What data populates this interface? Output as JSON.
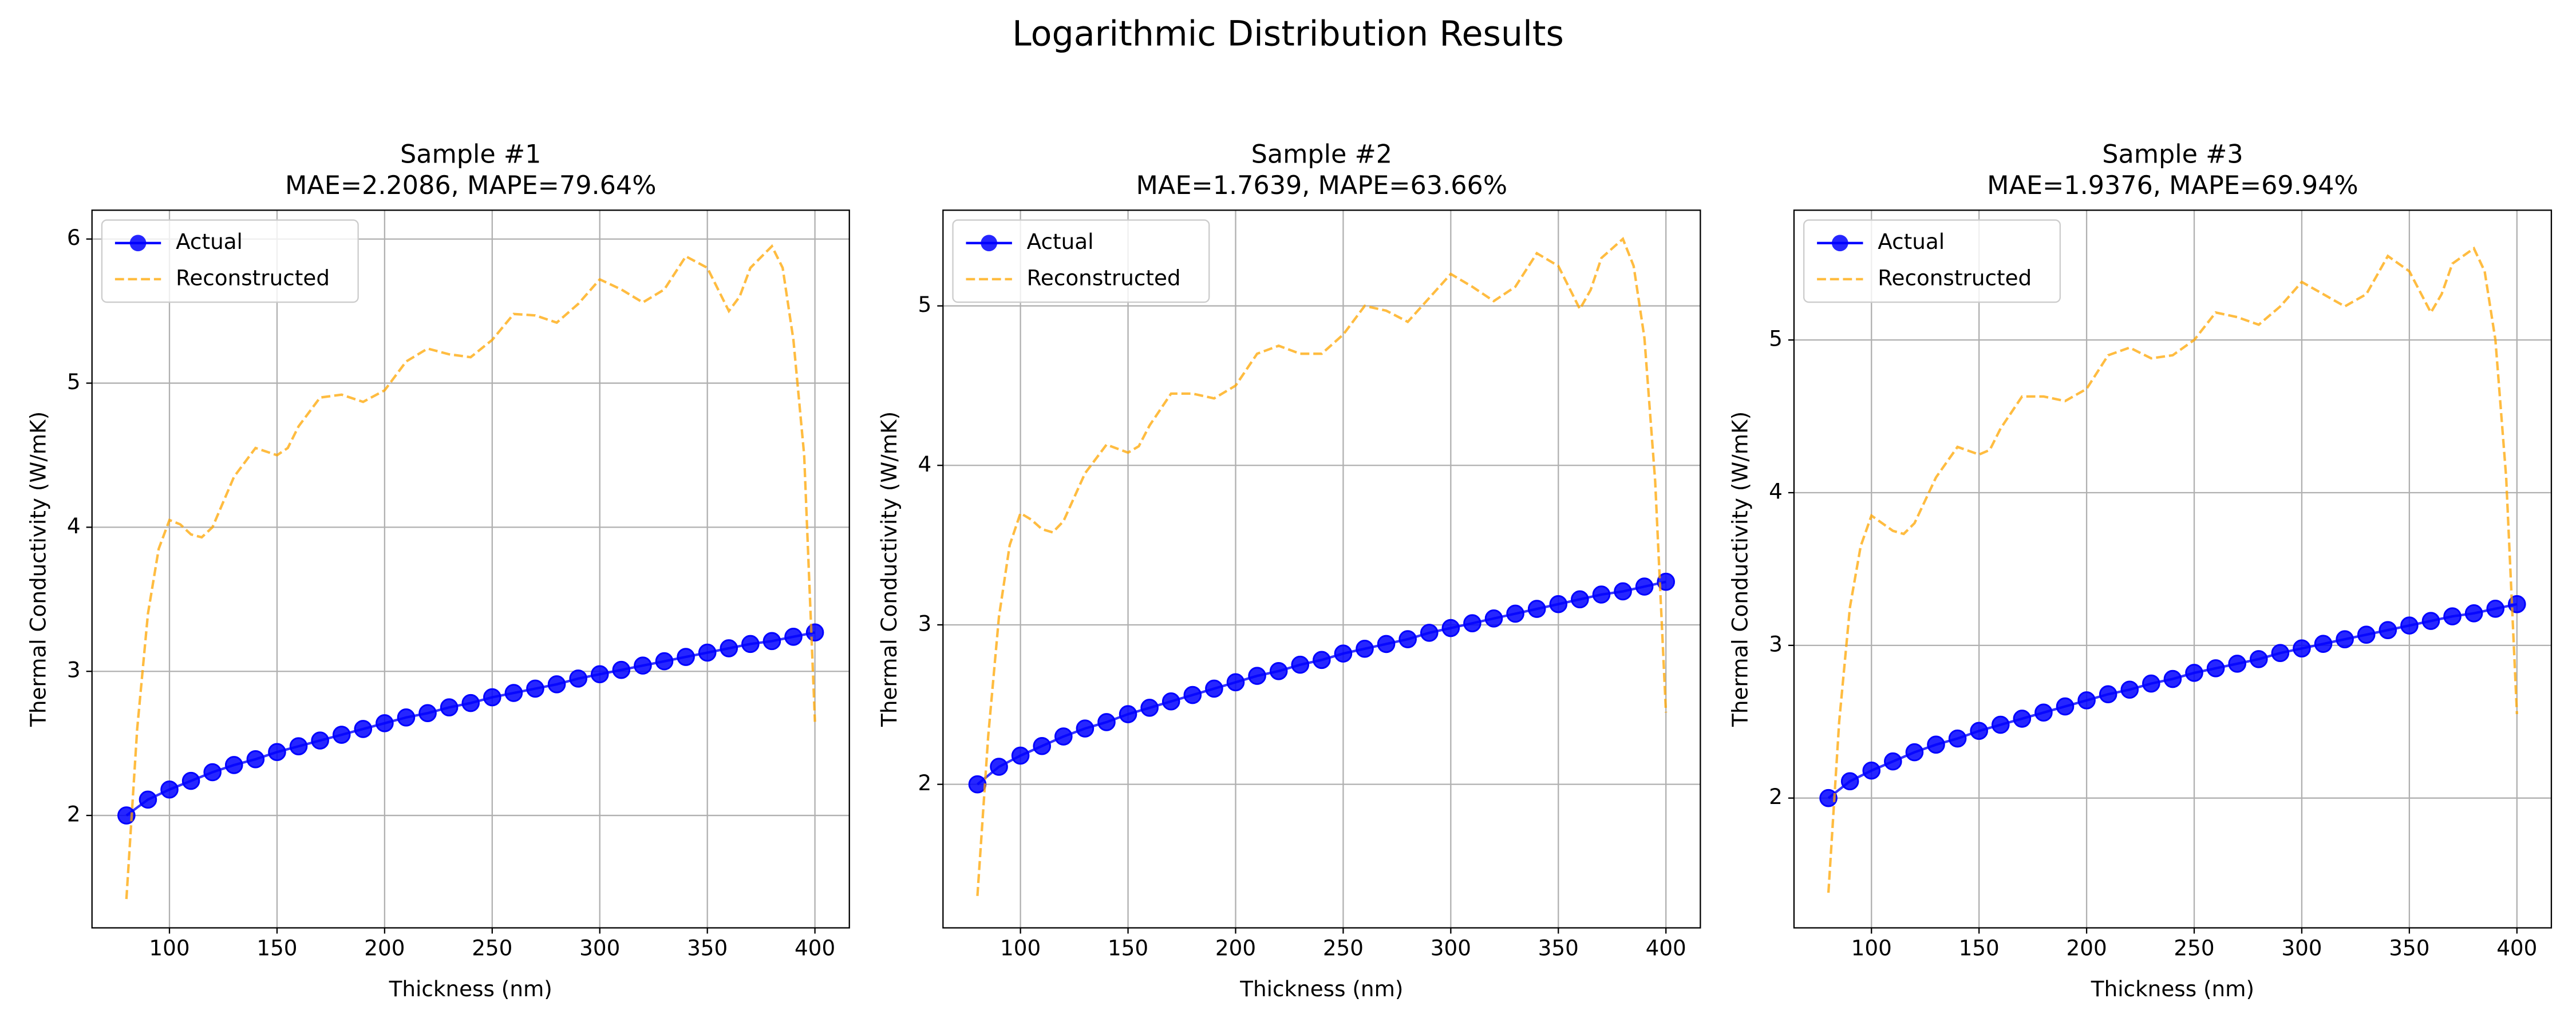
{
  "suptitle": "Logarithmic Distribution Results",
  "chart_data": [
    {
      "type": "line",
      "title": "Sample #1",
      "subtitle": "MAE=2.2086, MAPE=79.64%",
      "xlabel": "Thickness (nm)",
      "ylabel": "Thermal Conductivity (W/mK)",
      "xlim": [
        64,
        416
      ],
      "xticks": [
        100,
        150,
        200,
        250,
        300,
        350,
        400
      ],
      "ylim": [
        1.22,
        6.2
      ],
      "yticks": [
        2,
        3,
        4,
        5,
        6
      ],
      "grid": true,
      "legend": "upper left",
      "series": [
        {
          "name": "Actual",
          "color": "#0000ff",
          "marker": "o",
          "linestyle": "solid",
          "x": [
            80,
            90,
            100,
            110,
            120,
            130,
            140,
            150,
            160,
            170,
            180,
            190,
            200,
            210,
            220,
            230,
            240,
            250,
            260,
            270,
            280,
            290,
            300,
            310,
            320,
            330,
            340,
            350,
            360,
            370,
            380,
            390,
            400
          ],
          "values": [
            2.0,
            2.11,
            2.18,
            2.24,
            2.3,
            2.35,
            2.39,
            2.44,
            2.48,
            2.52,
            2.56,
            2.6,
            2.64,
            2.68,
            2.71,
            2.75,
            2.78,
            2.82,
            2.85,
            2.88,
            2.91,
            2.95,
            2.98,
            3.01,
            3.04,
            3.07,
            3.1,
            3.13,
            3.16,
            3.19,
            3.21,
            3.24,
            3.27
          ]
        },
        {
          "name": "Reconstructed",
          "color": "#ffa500",
          "marker": "none",
          "linestyle": "dashed",
          "x": [
            80,
            85,
            90,
            95,
            100,
            105,
            110,
            115,
            120,
            130,
            140,
            150,
            155,
            160,
            170,
            180,
            190,
            200,
            210,
            220,
            230,
            240,
            250,
            260,
            270,
            280,
            290,
            300,
            310,
            320,
            330,
            340,
            350,
            360,
            365,
            370,
            380,
            385,
            390,
            395,
            400
          ],
          "values": [
            1.42,
            2.6,
            3.4,
            3.85,
            4.05,
            4.02,
            3.95,
            3.93,
            4.0,
            4.35,
            4.55,
            4.5,
            4.55,
            4.7,
            4.9,
            4.92,
            4.87,
            4.95,
            5.15,
            5.24,
            5.2,
            5.18,
            5.3,
            5.48,
            5.47,
            5.42,
            5.55,
            5.72,
            5.65,
            5.56,
            5.65,
            5.88,
            5.8,
            5.5,
            5.6,
            5.8,
            5.95,
            5.8,
            5.3,
            4.5,
            2.65
          ]
        }
      ]
    },
    {
      "type": "line",
      "title": "Sample #2",
      "subtitle": "MAE=1.7639, MAPE=63.66%",
      "xlabel": "Thickness (nm)",
      "ylabel": "Thermal Conductivity (W/mK)",
      "xlim": [
        64,
        416
      ],
      "xticks": [
        100,
        150,
        200,
        250,
        300,
        350,
        400
      ],
      "ylim": [
        1.1,
        5.6
      ],
      "yticks": [
        2,
        3,
        4,
        5
      ],
      "grid": true,
      "legend": "upper left",
      "series": [
        {
          "name": "Actual",
          "color": "#0000ff",
          "marker": "o",
          "linestyle": "solid",
          "x": [
            80,
            90,
            100,
            110,
            120,
            130,
            140,
            150,
            160,
            170,
            180,
            190,
            200,
            210,
            220,
            230,
            240,
            250,
            260,
            270,
            280,
            290,
            300,
            310,
            320,
            330,
            340,
            350,
            360,
            370,
            380,
            390,
            400
          ],
          "values": [
            2.0,
            2.11,
            2.18,
            2.24,
            2.3,
            2.35,
            2.39,
            2.44,
            2.48,
            2.52,
            2.56,
            2.6,
            2.64,
            2.68,
            2.71,
            2.75,
            2.78,
            2.82,
            2.85,
            2.88,
            2.91,
            2.95,
            2.98,
            3.01,
            3.04,
            3.07,
            3.1,
            3.13,
            3.16,
            3.19,
            3.21,
            3.24,
            3.27
          ]
        },
        {
          "name": "Reconstructed",
          "color": "#ffa500",
          "marker": "none",
          "linestyle": "dashed",
          "x": [
            80,
            85,
            90,
            95,
            100,
            105,
            110,
            115,
            120,
            130,
            140,
            150,
            155,
            160,
            170,
            180,
            190,
            200,
            210,
            220,
            230,
            240,
            250,
            260,
            270,
            280,
            290,
            300,
            310,
            320,
            330,
            340,
            350,
            360,
            365,
            370,
            380,
            385,
            390,
            395,
            400
          ],
          "values": [
            1.3,
            2.3,
            3.05,
            3.5,
            3.7,
            3.66,
            3.6,
            3.58,
            3.65,
            3.95,
            4.13,
            4.08,
            4.12,
            4.25,
            4.45,
            4.45,
            4.42,
            4.5,
            4.7,
            4.75,
            4.7,
            4.7,
            4.82,
            5.0,
            4.97,
            4.9,
            5.05,
            5.2,
            5.12,
            5.03,
            5.12,
            5.33,
            5.25,
            4.98,
            5.1,
            5.3,
            5.42,
            5.25,
            4.8,
            3.9,
            2.45
          ]
        }
      ]
    },
    {
      "type": "line",
      "title": "Sample #3",
      "subtitle": "MAE=1.9376, MAPE=69.94%",
      "xlabel": "Thickness (nm)",
      "ylabel": "Thermal Conductivity (W/mK)",
      "xlim": [
        64,
        416
      ],
      "xticks": [
        100,
        150,
        200,
        250,
        300,
        350,
        400
      ],
      "ylim": [
        1.15,
        5.85
      ],
      "yticks": [
        2,
        3,
        4,
        5
      ],
      "grid": true,
      "legend": "upper left",
      "series": [
        {
          "name": "Actual",
          "color": "#0000ff",
          "marker": "o",
          "linestyle": "solid",
          "x": [
            80,
            90,
            100,
            110,
            120,
            130,
            140,
            150,
            160,
            170,
            180,
            190,
            200,
            210,
            220,
            230,
            240,
            250,
            260,
            270,
            280,
            290,
            300,
            310,
            320,
            330,
            340,
            350,
            360,
            370,
            380,
            390,
            400
          ],
          "values": [
            2.0,
            2.11,
            2.18,
            2.24,
            2.3,
            2.35,
            2.39,
            2.44,
            2.48,
            2.52,
            2.56,
            2.6,
            2.64,
            2.68,
            2.71,
            2.75,
            2.78,
            2.82,
            2.85,
            2.88,
            2.91,
            2.95,
            2.98,
            3.01,
            3.04,
            3.07,
            3.1,
            3.13,
            3.16,
            3.19,
            3.21,
            3.24,
            3.27
          ]
        },
        {
          "name": "Reconstructed",
          "color": "#ffa500",
          "marker": "none",
          "linestyle": "dashed",
          "x": [
            80,
            85,
            90,
            95,
            100,
            105,
            110,
            115,
            120,
            130,
            140,
            150,
            155,
            160,
            170,
            180,
            190,
            200,
            210,
            220,
            230,
            240,
            250,
            260,
            270,
            280,
            290,
            300,
            310,
            320,
            330,
            340,
            350,
            360,
            365,
            370,
            380,
            385,
            390,
            395,
            400
          ],
          "values": [
            1.38,
            2.5,
            3.25,
            3.65,
            3.85,
            3.8,
            3.75,
            3.73,
            3.8,
            4.1,
            4.3,
            4.25,
            4.28,
            4.42,
            4.63,
            4.63,
            4.6,
            4.68,
            4.9,
            4.95,
            4.88,
            4.9,
            5.0,
            5.18,
            5.15,
            5.1,
            5.22,
            5.38,
            5.3,
            5.22,
            5.3,
            5.55,
            5.45,
            5.18,
            5.3,
            5.5,
            5.6,
            5.45,
            5.0,
            4.1,
            2.55
          ]
        }
      ]
    }
  ]
}
